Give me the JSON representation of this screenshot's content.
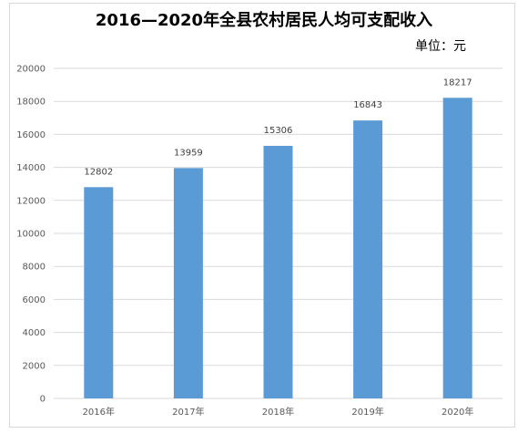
{
  "chart_data": {
    "type": "bar",
    "title": "2016—2020年全县农村居民人均可支配收入",
    "unit_label": "单位：元",
    "categories": [
      "2016年",
      "2017年",
      "2018年",
      "2019年",
      "2020年"
    ],
    "values": [
      12802,
      13959,
      15306,
      16843,
      18217
    ],
    "ylim": [
      0,
      20000
    ],
    "yticks": [
      0,
      2000,
      4000,
      6000,
      8000,
      10000,
      12000,
      14000,
      16000,
      18000,
      20000
    ],
    "grid": true,
    "legend": "none",
    "bar_color": "#5b9bd5",
    "grid_color": "#d9d9d9"
  }
}
